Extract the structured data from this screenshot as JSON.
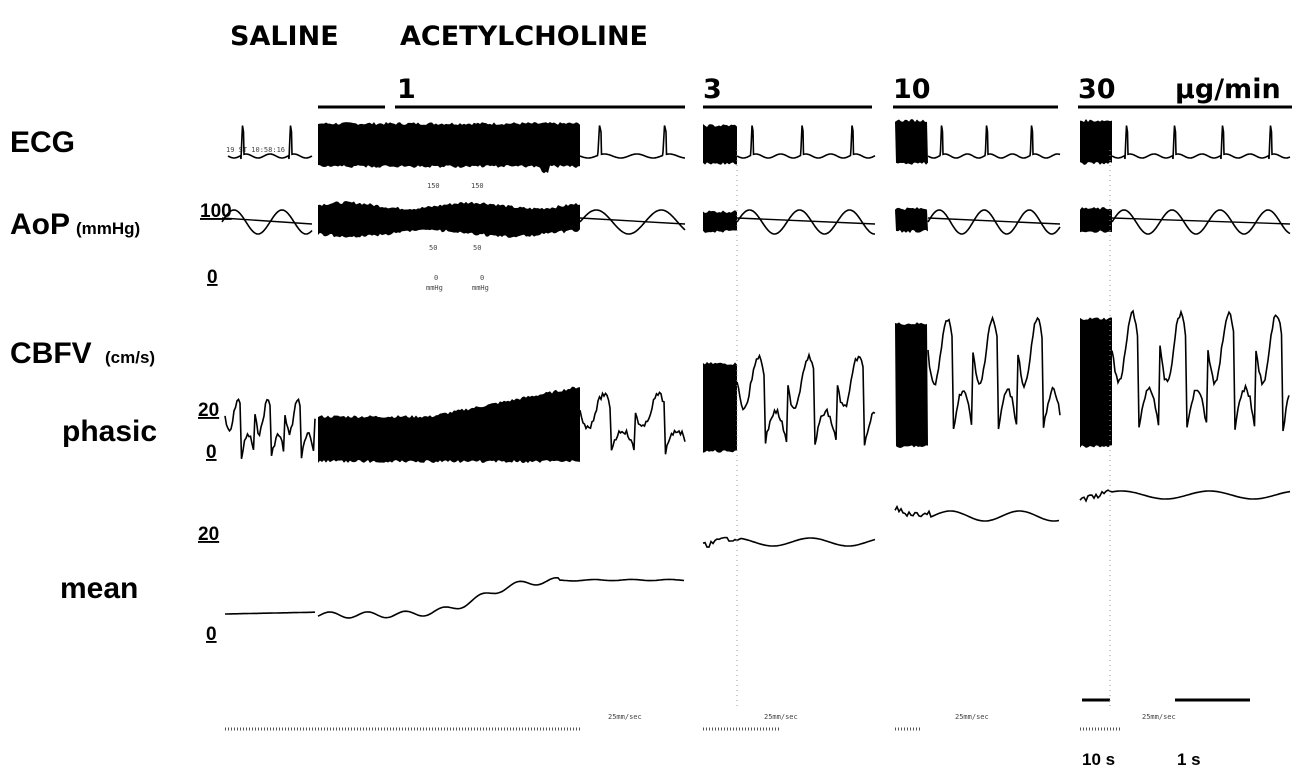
{
  "header": {
    "saline": "SALINE",
    "drug": "ACETYLCHOLINE"
  },
  "doses": [
    "1",
    "3",
    "10",
    "30"
  ],
  "dose_unit": "μg/min",
  "rows": {
    "ecg": {
      "label": "ECG"
    },
    "aop": {
      "label": "AoP",
      "unit": "(mmHg)",
      "scale": [
        "100",
        "0"
      ]
    },
    "cbfv": {
      "label": "CBFV",
      "unit": "(cm/s)"
    },
    "phasic": {
      "label": "phasic",
      "scale": [
        "20",
        "0"
      ]
    },
    "mean": {
      "label": "mean",
      "scale": [
        "20",
        "0"
      ]
    }
  },
  "timestamp": "19 ST 10:58:16",
  "paper_marks": [
    "150",
    "150",
    "50",
    "50",
    "0",
    "0",
    "mmHg",
    "mmHg"
  ],
  "paper_speed": [
    "25mm/sec",
    "25mm/sec",
    "25mm/sec",
    "25mm/sec"
  ],
  "scale_bars": [
    "10 s",
    "1 s"
  ]
}
